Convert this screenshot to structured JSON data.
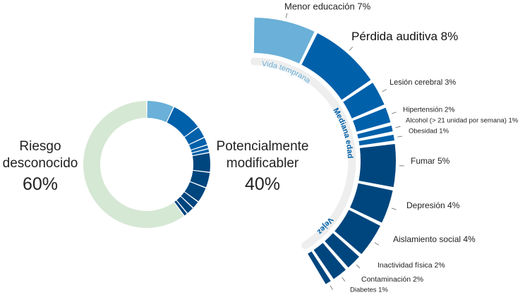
{
  "colors": {
    "early_life": "#6ab0d8",
    "midlife": "#0060aa",
    "later_life": "#00467e",
    "unknown": "#d5e8d4",
    "track": "#eeeeee"
  },
  "summary": {
    "unknown": {
      "label_line1": "Riesgo",
      "label_line2": "desconocido",
      "value": "60%"
    },
    "modifiable": {
      "label_line1": "Potencialmente",
      "label_line2": "modificabler",
      "value": "40%"
    }
  },
  "stages": {
    "early_life": "Vida temprana",
    "midlife": "Mediana edad",
    "later_life": "Vejez"
  },
  "chart_data": {
    "type": "pie",
    "donut": {
      "unknown": 60,
      "modifiable": 40
    },
    "factors": [
      {
        "label": "Menor educación 7%",
        "value": 7,
        "stage": "early_life"
      },
      {
        "label": "Pérdida auditiva 8%",
        "value": 8,
        "stage": "midlife"
      },
      {
        "label": "Lesión cerebral 3%",
        "value": 3,
        "stage": "midlife"
      },
      {
        "label": "Hipertensión 2%",
        "value": 2,
        "stage": "midlife"
      },
      {
        "label": "Alcohol (> 21 unidad por semana) 1%",
        "value": 1,
        "stage": "midlife"
      },
      {
        "label": "Obesidad 1%",
        "value": 1,
        "stage": "midlife"
      },
      {
        "label": "Fumar 5%",
        "value": 5,
        "stage": "later_life"
      },
      {
        "label": "Depresión 4%",
        "value": 4,
        "stage": "later_life"
      },
      {
        "label": "Aislamiento social 4%",
        "value": 4,
        "stage": "later_life"
      },
      {
        "label": "Inactividad física 2%",
        "value": 2,
        "stage": "later_life"
      },
      {
        "label": "Contaminación 2%",
        "value": 2,
        "stage": "later_life"
      },
      {
        "label": "Diabetes 1%",
        "value": 1,
        "stage": "later_life"
      }
    ]
  }
}
